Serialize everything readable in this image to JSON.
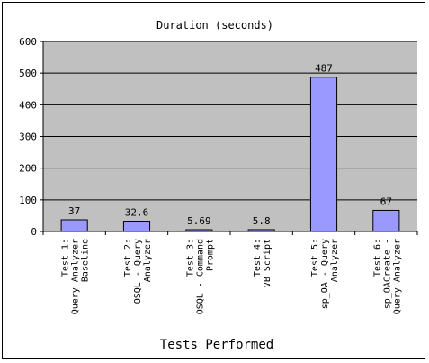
{
  "chart_data": {
    "type": "bar",
    "title": "Duration (seconds)",
    "xlabel": "Tests Performed",
    "ylabel": "",
    "ylim": [
      0,
      600
    ],
    "yticks": [
      0,
      100,
      200,
      300,
      400,
      500,
      600
    ],
    "grid": true,
    "legend": "none",
    "categories": [
      [
        "Test 1:",
        "Query Analyzer",
        "Baseline"
      ],
      [
        "Test 2:",
        "OSQL - Query",
        "Analyzer"
      ],
      [
        "Test 3:",
        "OSQL - Command",
        "Prompt"
      ],
      [
        "Test 4:",
        "VB Script"
      ],
      [
        "Test 5:",
        "sp_OA - Query",
        "Analyzer"
      ],
      [
        "Test 6:",
        "sp_OACreate -",
        "Query Analyzer"
      ]
    ],
    "values": [
      37,
      32.6,
      5.69,
      5.8,
      487,
      67
    ],
    "data_labels": [
      "37",
      "32.6",
      "5.69",
      "5.8",
      "487",
      "67"
    ],
    "colors": {
      "plot_background": "#c0c0c0",
      "bar_fill": "#9999ff",
      "bar_stroke": "#000000",
      "gridline": "#000000"
    }
  }
}
